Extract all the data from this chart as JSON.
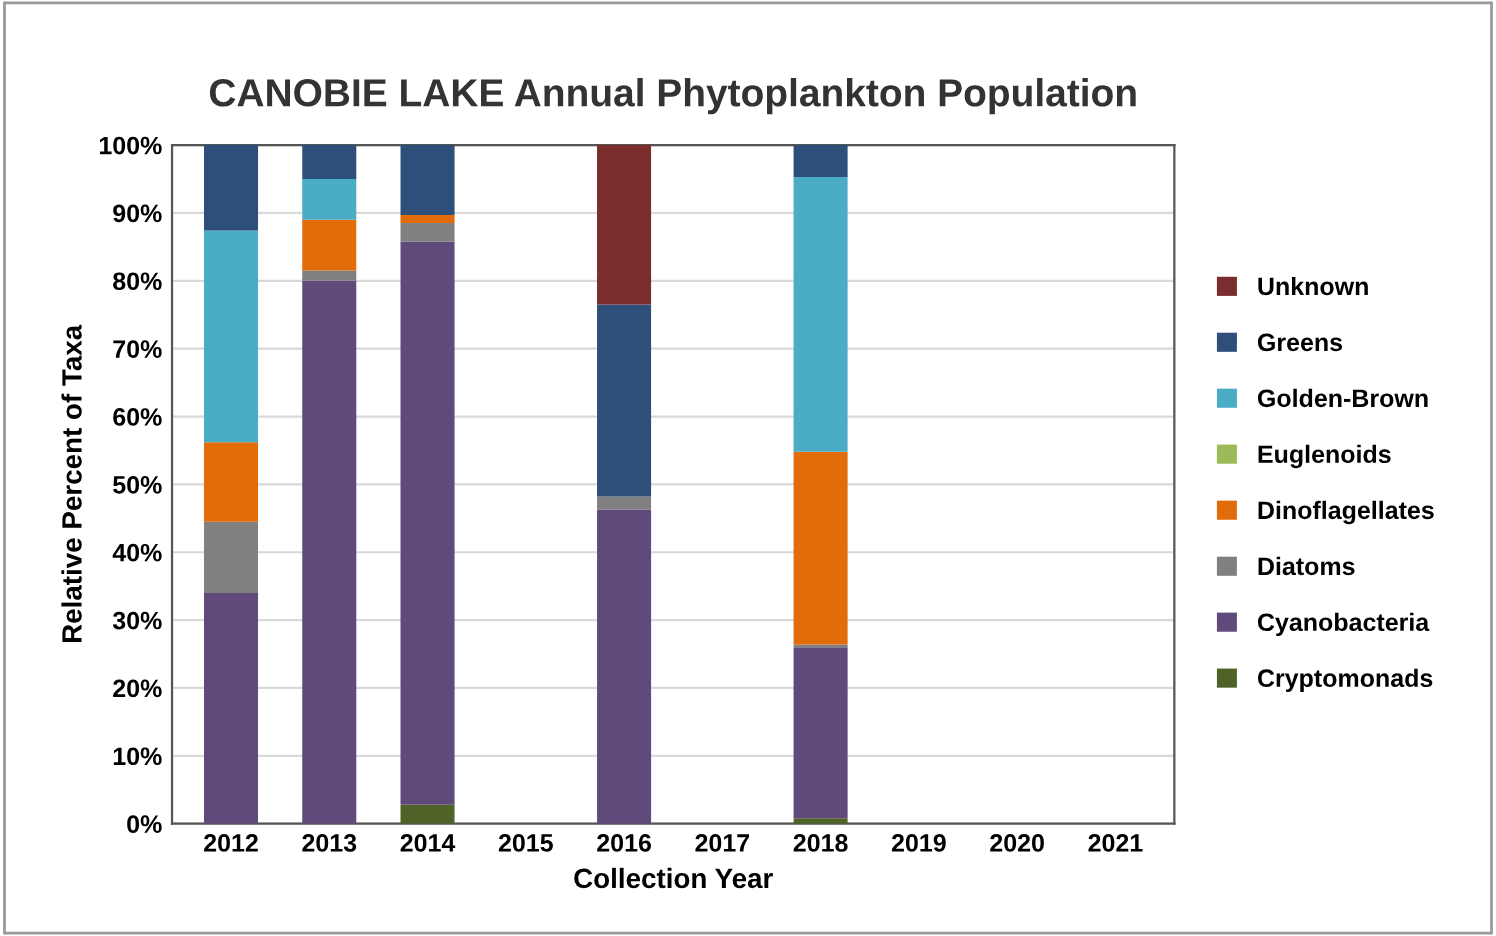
{
  "chart_data": {
    "type": "bar",
    "stacked": true,
    "title": "CANOBIE LAKE Annual Phytoplankton Population",
    "xlabel": "Collection Year",
    "ylabel": "Relative Percent of Taxa",
    "categories": [
      "2012",
      "2013",
      "2014",
      "2015",
      "2016",
      "2017",
      "2018",
      "2019",
      "2020",
      "2021"
    ],
    "series": [
      {
        "name": "Cryptomonads",
        "color": "#4f6228",
        "values": [
          0,
          0,
          2.8,
          null,
          0,
          null,
          0.8,
          null,
          null,
          null
        ]
      },
      {
        "name": "Cyanobacteria",
        "color": "#604a7b",
        "values": [
          34,
          80,
          83,
          null,
          46.3,
          null,
          25.2,
          null,
          null,
          null
        ]
      },
      {
        "name": "Diatoms",
        "color": "#808080",
        "values": [
          10.5,
          1.5,
          2.7,
          null,
          1.9,
          null,
          0.4,
          null,
          null,
          null
        ]
      },
      {
        "name": "Dinoflagellates",
        "color": "#e36c0a",
        "values": [
          11.7,
          7.5,
          1.2,
          null,
          0,
          null,
          28.4,
          null,
          null,
          null
        ]
      },
      {
        "name": "Euglenoids",
        "color": "#9bbb59",
        "values": [
          0,
          0,
          0,
          null,
          0,
          null,
          0,
          null,
          null,
          null
        ]
      },
      {
        "name": "Golden-Brown",
        "color": "#4bacc6",
        "values": [
          31.2,
          6,
          0,
          null,
          0,
          null,
          40.5,
          null,
          null,
          null
        ]
      },
      {
        "name": "Greens",
        "color": "#2e4f7a",
        "values": [
          12.6,
          5,
          10.3,
          null,
          28.3,
          null,
          4.7,
          null,
          null,
          null
        ]
      },
      {
        "name": "Unknown",
        "color": "#7b2c2c",
        "values": [
          0,
          0,
          0,
          null,
          23.5,
          null,
          0,
          null,
          null,
          null
        ]
      }
    ],
    "ylim": [
      0,
      100
    ],
    "yticks": [
      {
        "value": 0,
        "label": "0%"
      },
      {
        "value": 10,
        "label": "10%"
      },
      {
        "value": 20,
        "label": "20%"
      },
      {
        "value": 30,
        "label": "30%"
      },
      {
        "value": 40,
        "label": "40%"
      },
      {
        "value": 50,
        "label": "50%"
      },
      {
        "value": 60,
        "label": "60%"
      },
      {
        "value": 70,
        "label": "70%"
      },
      {
        "value": 80,
        "label": "80%"
      },
      {
        "value": 90,
        "label": "90%"
      },
      {
        "value": 100,
        "label": "100%"
      }
    ],
    "grid": "y",
    "legend": "right"
  }
}
